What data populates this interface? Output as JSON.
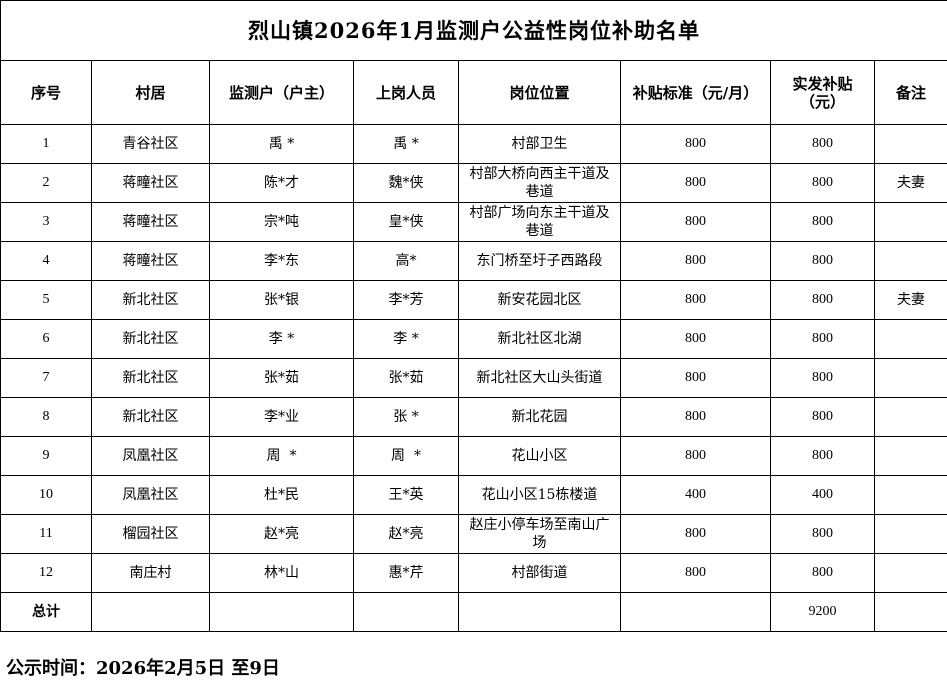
{
  "title": "烈山镇2026年1月监测户公益性岗位补助名单",
  "headers": [
    "序号",
    "村居",
    "监测户（户主）",
    "上岗人员",
    "岗位位置",
    "补贴标准（元/月）",
    "实发补贴（元）",
    "备注"
  ],
  "rows": [
    [
      "1",
      "青谷社区",
      "禹 *",
      "禹 *",
      "村部卫生",
      "800",
      "800",
      ""
    ],
    [
      "2",
      "蒋疃社区",
      "陈*才",
      "魏*侠",
      "村部大桥向西主干道及巷道",
      "800",
      "800",
      "夫妻"
    ],
    [
      "3",
      "蒋疃社区",
      "宗*吨",
      "皇*侠",
      "村部广场向东主干道及巷道",
      "800",
      "800",
      ""
    ],
    [
      "4",
      "蒋疃社区",
      "李*东",
      "高*",
      "东门桥至圩子西路段",
      "800",
      "800",
      ""
    ],
    [
      "5",
      "新北社区",
      "张*银",
      "李*芳",
      "新安花园北区",
      "800",
      "800",
      "夫妻"
    ],
    [
      "6",
      "新北社区",
      "李 *",
      "李 *",
      "新北社区北湖",
      "800",
      "800",
      ""
    ],
    [
      "7",
      "新北社区",
      "张*茹",
      "张*茹",
      "新北社区大山头街道",
      "800",
      "800",
      ""
    ],
    [
      "8",
      "新北社区",
      "李*业",
      "张 *",
      "新北花园",
      "800",
      "800",
      ""
    ],
    [
      "9",
      "凤凰社区",
      "周  *",
      "周  *",
      "花山小区",
      "800",
      "800",
      ""
    ],
    [
      "10",
      "凤凰社区",
      "杜*民",
      "王*英",
      "花山小区15栋楼道",
      "400",
      "400",
      ""
    ],
    [
      "11",
      "榴园社区",
      "赵*亮",
      "赵*亮",
      "赵庄小停车场至南山广场",
      "800",
      "800",
      ""
    ],
    [
      "12",
      "南庄村",
      "林*山",
      "惠*芹",
      "村部街道",
      "800",
      "800",
      ""
    ]
  ],
  "total": {
    "label": "总计",
    "value": "9200"
  },
  "footer": "公示时间：2026年2月5日 至9日"
}
